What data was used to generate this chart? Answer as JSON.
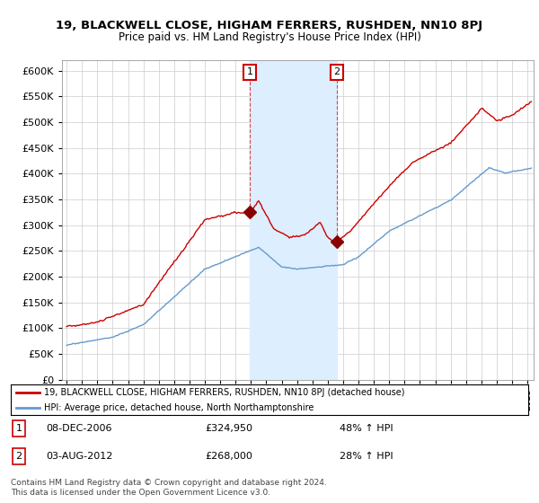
{
  "title": "19, BLACKWELL CLOSE, HIGHAM FERRERS, RUSHDEN, NN10 8PJ",
  "subtitle": "Price paid vs. HM Land Registry's House Price Index (HPI)",
  "red_label": "19, BLACKWELL CLOSE, HIGHAM FERRERS, RUSHDEN, NN10 8PJ (detached house)",
  "blue_label": "HPI: Average price, detached house, North Northamptonshire",
  "annotation1_date": "08-DEC-2006",
  "annotation1_price": "£324,950",
  "annotation1_hpi": "48% ↑ HPI",
  "annotation2_date": "03-AUG-2012",
  "annotation2_price": "£268,000",
  "annotation2_hpi": "28% ↑ HPI",
  "footer": "Contains HM Land Registry data © Crown copyright and database right 2024.\nThis data is licensed under the Open Government Licence v3.0.",
  "red_color": "#cc0000",
  "blue_color": "#6699cc",
  "shade_color": "#ddeeff",
  "bg_color": "#ffffff",
  "grid_color": "#cccccc",
  "ylim": [
    0,
    620000
  ],
  "yticks": [
    0,
    50000,
    100000,
    150000,
    200000,
    250000,
    300000,
    350000,
    400000,
    450000,
    500000,
    550000,
    600000
  ],
  "sale1_x": 2006.917,
  "sale1_y": 324950,
  "sale2_x": 2012.583,
  "sale2_y": 268000,
  "xmin": 1994.7,
  "xmax": 2025.4
}
